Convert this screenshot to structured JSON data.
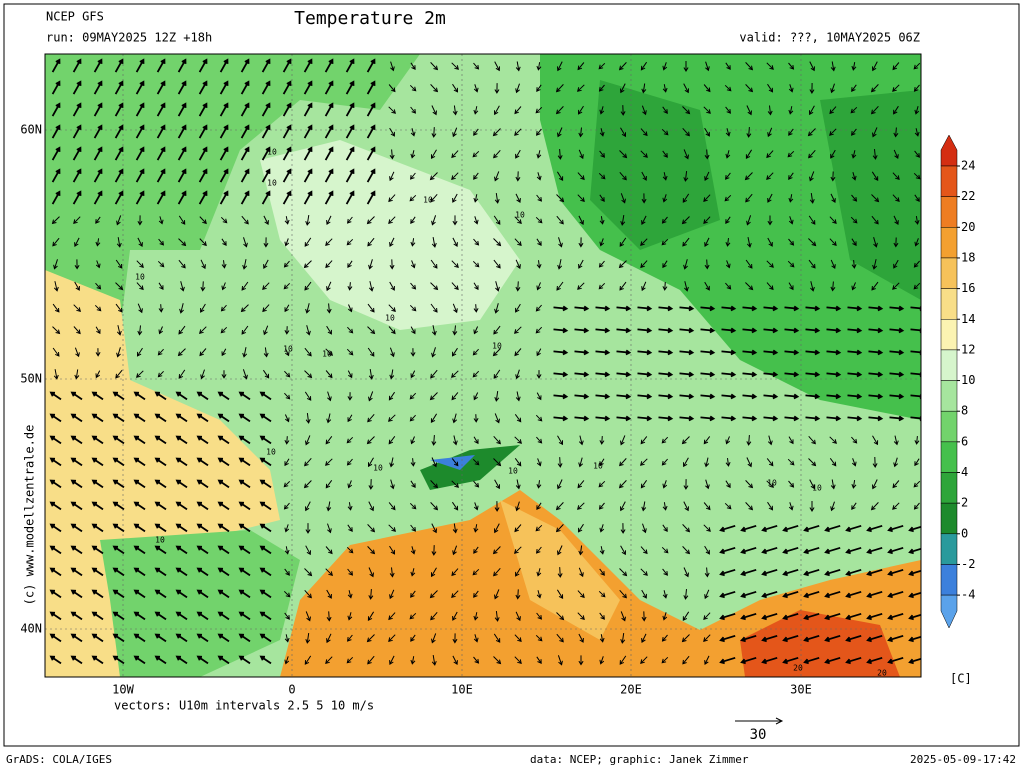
{
  "header": {
    "model": "NCEP GFS",
    "title": "Temperature 2m",
    "run": "run: 09MAY2025 12Z +18h",
    "valid": "valid: ???, 10MAY2025 06Z"
  },
  "map": {
    "lat_labels": [
      "60N",
      "50N",
      "40N"
    ],
    "lon_labels": [
      "10W",
      "0",
      "10E",
      "20E",
      "30E"
    ],
    "contour_labels": [
      "10",
      "10",
      "10",
      "10",
      "10",
      "10",
      "10",
      "10",
      "10",
      "10",
      "10",
      "10",
      "10",
      "10",
      "10",
      "10",
      "20",
      "20"
    ],
    "watermark": "(c) www.modellzentrale.de"
  },
  "colorbar": {
    "levels": [
      24,
      22,
      20,
      18,
      16,
      14,
      12,
      10,
      8,
      6,
      4,
      2,
      0,
      -2,
      -4
    ],
    "colors": [
      "#d42e12",
      "#e4561a",
      "#ee7d22",
      "#f3a030",
      "#f6c25a",
      "#f8de88",
      "#fbf3b2",
      "#d6f5cc",
      "#a6e59e",
      "#72d36c",
      "#45c04c",
      "#2ea53a",
      "#1d8a2c",
      "#2a9a9c",
      "#3c80dc",
      "#5aa2ea"
    ],
    "unit": "[C]"
  },
  "footer": {
    "vectors": "vectors: U10m intervals 2.5 5 10 m/s",
    "ref_vector": "30",
    "grads": "GrADS: COLA/IGES",
    "credit": "data: NCEP; graphic: Janek Zimmer",
    "timestamp": "2025-05-09-17:42"
  }
}
